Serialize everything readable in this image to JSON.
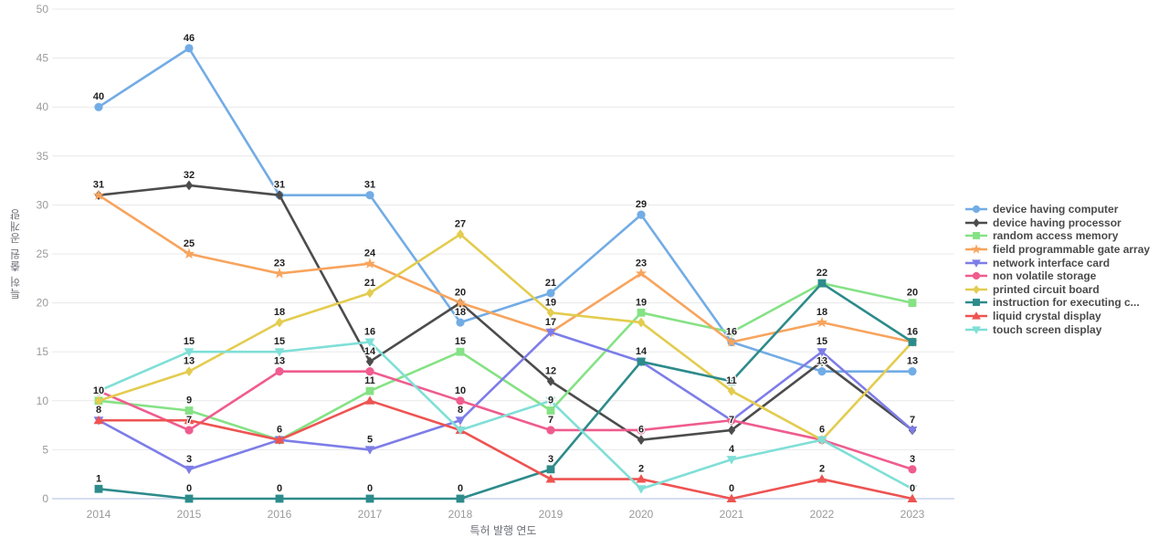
{
  "page": {
    "background": "#ffffff"
  },
  "chart_data": {
    "type": "line",
    "title": "",
    "xlabel": "특허 발행 연도",
    "ylabel": "특허 출원 공개량",
    "ylim": [
      0,
      50
    ],
    "ytick_step": 5,
    "grid": true,
    "legend_position": "right",
    "categories": [
      "2014",
      "2015",
      "2016",
      "2017",
      "2018",
      "2019",
      "2020",
      "2021",
      "2022",
      "2023"
    ],
    "series": [
      {
        "name": "device having computer",
        "color": "#72ACE5",
        "marker": "circle",
        "values": [
          40,
          46,
          31,
          31,
          18,
          21,
          29,
          16,
          13,
          13
        ],
        "hidden_labels": [
          7
        ]
      },
      {
        "name": "device having processor",
        "color": "#4C4C4C",
        "marker": "diamond",
        "values": [
          31,
          32,
          31,
          14,
          20,
          12,
          6,
          7,
          14,
          7
        ],
        "hidden_labels": [
          2,
          4,
          8,
          9
        ]
      },
      {
        "name": "random access memory",
        "color": "#85E285",
        "marker": "square",
        "values": [
          10,
          9,
          6,
          11,
          15,
          9,
          19,
          17,
          22,
          20
        ],
        "hidden_labels": [
          7,
          8
        ]
      },
      {
        "name": "field programmable gate array",
        "color": "#F7A45D",
        "marker": "star",
        "values": [
          31,
          25,
          23,
          24,
          20,
          17,
          23,
          16,
          18,
          16
        ],
        "hidden_labels": [
          0,
          9
        ]
      },
      {
        "name": "network interface card",
        "color": "#7D7DE8",
        "marker": "triangle-down",
        "values": [
          8,
          3,
          6,
          5,
          8,
          17,
          14,
          8,
          15,
          7
        ],
        "hidden_labels": [
          2,
          5,
          6,
          7
        ]
      },
      {
        "name": "non volatile storage",
        "color": "#EF5C8F",
        "marker": "circle",
        "values": [
          11,
          7,
          13,
          13,
          10,
          7,
          7,
          8,
          6,
          3
        ],
        "hidden_labels": [
          0,
          3,
          6,
          7,
          8
        ]
      },
      {
        "name": "printed circuit board",
        "color": "#E3CC4F",
        "marker": "diamond",
        "values": [
          10,
          13,
          18,
          21,
          27,
          19,
          18,
          11,
          6,
          16
        ],
        "hidden_labels": [
          0,
          6,
          9
        ]
      },
      {
        "name": "instruction for executing c...",
        "color": "#2D8B8B",
        "marker": "square",
        "values": [
          1,
          0,
          0,
          0,
          0,
          3,
          14,
          12,
          22,
          16
        ],
        "hidden_labels": [
          7
        ]
      },
      {
        "name": "liquid crystal display",
        "color": "#EE5351",
        "marker": "triangle-up",
        "values": [
          8,
          8,
          6,
          10,
          7,
          2,
          2,
          0,
          2,
          0
        ],
        "hidden_labels": [
          0,
          1,
          2,
          3,
          4,
          5
        ]
      },
      {
        "name": "touch screen display",
        "color": "#7FDFD7",
        "marker": "triangle-down",
        "values": [
          11,
          15,
          15,
          16,
          7,
          10,
          1,
          4,
          6,
          1
        ],
        "hidden_labels": [
          0,
          4,
          5,
          6,
          8,
          9
        ]
      }
    ]
  }
}
